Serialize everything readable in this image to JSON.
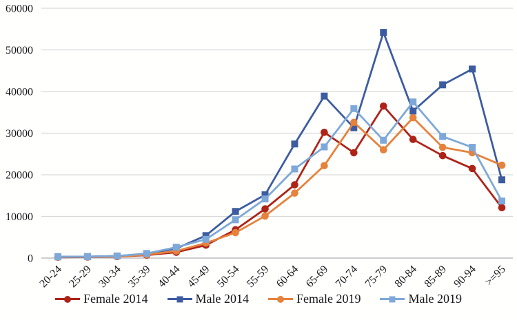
{
  "chart_data": {
    "type": "line",
    "title": "",
    "xlabel": "",
    "ylabel": "",
    "categories": [
      "20-24",
      "25-29",
      "30-34",
      "35-39",
      "40-44",
      "45-49",
      "50-54",
      "55-59",
      "60-64",
      "65-69",
      "70-74",
      "75-79",
      "80-84",
      "85-89",
      "90-94",
      ">=95"
    ],
    "series": [
      {
        "name": "Female 2014",
        "marker": "circle",
        "color": "#ae2318",
        "values": [
          200,
          250,
          350,
          700,
          1400,
          3100,
          6800,
          11800,
          17600,
          30200,
          25300,
          36500,
          28500,
          24600,
          21500,
          12100
        ]
      },
      {
        "name": "Male 2014",
        "marker": "square",
        "color": "#3d5ca0",
        "values": [
          300,
          350,
          500,
          1000,
          2300,
          5400,
          11200,
          15200,
          27400,
          38900,
          31300,
          54200,
          35300,
          41600,
          45400,
          18800
        ]
      },
      {
        "name": "Female 2019",
        "marker": "circle",
        "color": "#e6823c",
        "values": [
          250,
          300,
          400,
          800,
          1700,
          3600,
          6100,
          10100,
          15600,
          22200,
          32600,
          26000,
          33700,
          26600,
          25300,
          22300
        ]
      },
      {
        "name": "Male 2019",
        "marker": "square",
        "color": "#7ea8d8",
        "values": [
          300,
          350,
          500,
          1100,
          2600,
          4500,
          9200,
          14200,
          21400,
          26700,
          35900,
          28300,
          37500,
          29200,
          26600,
          13700
        ]
      }
    ],
    "y_axis": {
      "min": 0,
      "max": 60000,
      "step": 10000,
      "tick_labels": [
        "0",
        "10000",
        "20000",
        "30000",
        "40000",
        "50000",
        "60000"
      ]
    },
    "x_axis": {
      "tick_rotation_deg": -45
    },
    "legend": {
      "position": "bottom",
      "entries": [
        "Female 2014",
        "Male 2014",
        "Female 2019",
        "Male 2019"
      ]
    },
    "grid": {
      "horizontal": true,
      "vertical": false,
      "color": "#d9d9d9",
      "axis_line_color": "#bdbdbd"
    },
    "ylim": [
      0,
      60000
    ]
  }
}
